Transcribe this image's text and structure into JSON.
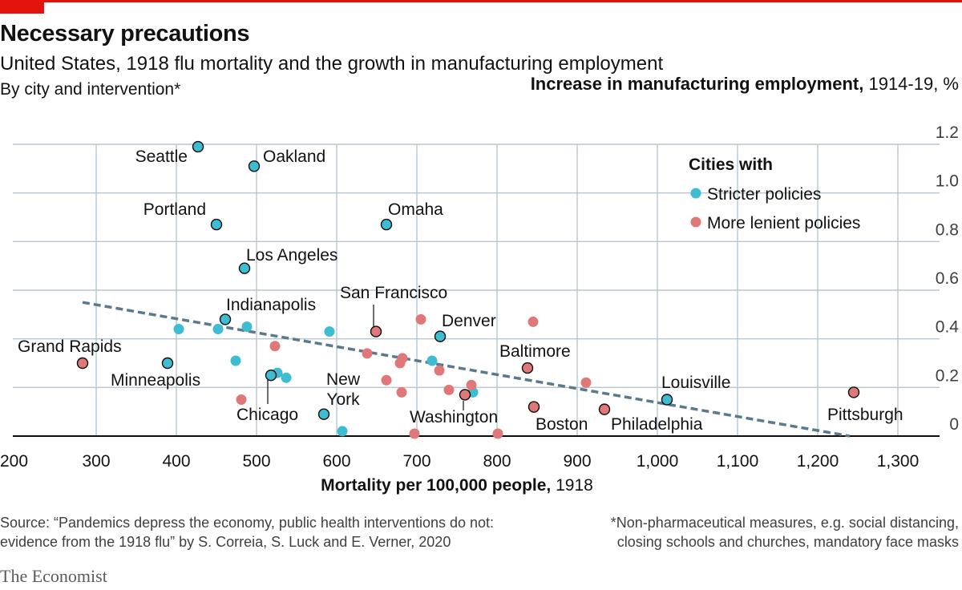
{
  "header": {
    "title": "Necessary precautions",
    "subtitle": "United States, 1918 flu mortality and the growth in manufacturing employment",
    "subsubtitle": "By city and intervention*"
  },
  "footer": {
    "source": "Source: “Pandemics depress the economy, public health interventions do not: evidence from the 1918 flu” by S. Correia, S. Luck and E. Verner, 2020",
    "note": "*Non-pharmaceutical measures, e.g. social distancing, closing schools and churches, mandatory face masks",
    "brand": "The Economist"
  },
  "colors": {
    "stricter": "#3ebcd2",
    "lenient": "#e0787a",
    "trend": "#5a7a8c",
    "grid": "#b7c6cf",
    "accent": "#e3120b"
  },
  "chart_data": {
    "type": "scatter",
    "title": "Necessary precautions",
    "xlabel_bold": "Mortality per 100,000 people,",
    "xlabel_rest": " 1918",
    "ylabel_bold": "Increase in manufacturing employment,",
    "ylabel_rest": " 1914-19, %",
    "xlim": [
      200,
      1350
    ],
    "ylim": [
      0,
      1.2
    ],
    "xticks": [
      200,
      300,
      400,
      500,
      600,
      700,
      800,
      900,
      1000,
      1100,
      1200,
      1300
    ],
    "xtick_labels": [
      "200",
      "300",
      "400",
      "500",
      "600",
      "700",
      "800",
      "900",
      "1,000",
      "1,100",
      "1,200",
      "1,300"
    ],
    "yticks": [
      0,
      0.2,
      0.4,
      0.6,
      0.8,
      1.0,
      1.2
    ],
    "ytick_labels": [
      "0",
      "0.2",
      "0.4",
      "0.6",
      "0.8",
      "1.0",
      "1.2"
    ],
    "grid": true,
    "legend": {
      "title": "Cities with",
      "position": "top-right",
      "items": [
        "Stricter policies",
        "More lenient policies"
      ]
    },
    "trendline": {
      "x": [
        283,
        1240
      ],
      "y": [
        0.55,
        0
      ]
    },
    "series": [
      {
        "name": "Stricter policies",
        "labelled": [
          {
            "city": "Seattle",
            "x": 427,
            "y": 1.19
          },
          {
            "city": "Oakland",
            "x": 497,
            "y": 1.11
          },
          {
            "city": "Portland",
            "x": 450,
            "y": 0.87
          },
          {
            "city": "Omaha",
            "x": 662,
            "y": 0.87
          },
          {
            "city": "Los Angeles",
            "x": 485,
            "y": 0.69
          },
          {
            "city": "Indianapolis",
            "x": 461,
            "y": 0.48
          },
          {
            "city": "Denver",
            "x": 729,
            "y": 0.41
          },
          {
            "city": "Minneapolis",
            "x": 389,
            "y": 0.3
          },
          {
            "city": "Chicago",
            "x": 518,
            "y": 0.25
          },
          {
            "city": "New York",
            "x": 584,
            "y": 0.09
          },
          {
            "city": "Louisville",
            "x": 1012,
            "y": 0.15
          }
        ],
        "points": [
          [
            403,
            0.44
          ],
          [
            452,
            0.44
          ],
          [
            488,
            0.45
          ],
          [
            474,
            0.31
          ],
          [
            526,
            0.26
          ],
          [
            537,
            0.24
          ],
          [
            591,
            0.43
          ],
          [
            719,
            0.31
          ],
          [
            770,
            0.18
          ],
          [
            607,
            0.02
          ]
        ]
      },
      {
        "name": "More lenient policies",
        "labelled": [
          {
            "city": "Grand Rapids",
            "x": 283,
            "y": 0.3
          },
          {
            "city": "San Francisco",
            "x": 649,
            "y": 0.43
          },
          {
            "city": "Baltimore",
            "x": 838,
            "y": 0.28
          },
          {
            "city": "Washington",
            "x": 760,
            "y": 0.17
          },
          {
            "city": "Boston",
            "x": 846,
            "y": 0.12
          },
          {
            "city": "Philadelphia",
            "x": 934,
            "y": 0.11
          },
          {
            "city": "Pittsburgh",
            "x": 1245,
            "y": 0.18
          }
        ],
        "points": [
          [
            705,
            0.48
          ],
          [
            845,
            0.47
          ],
          [
            523,
            0.37
          ],
          [
            638,
            0.34
          ],
          [
            682,
            0.32
          ],
          [
            679,
            0.3
          ],
          [
            728,
            0.27
          ],
          [
            662,
            0.23
          ],
          [
            768,
            0.21
          ],
          [
            911,
            0.22
          ],
          [
            740,
            0.19
          ],
          [
            681,
            0.18
          ],
          [
            481,
            0.15
          ],
          [
            697,
            0.01
          ],
          [
            801,
            0.01
          ]
        ]
      }
    ]
  }
}
